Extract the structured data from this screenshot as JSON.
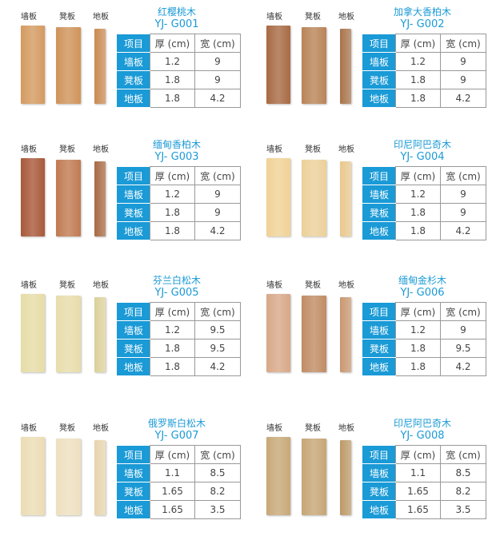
{
  "labels": {
    "wall": "墙板",
    "bench": "凳板",
    "floor": "地板"
  },
  "header": {
    "item": "项目",
    "thick": "厚 (cm)",
    "width": "宽 (cm)"
  },
  "accent": "#1a9ad6",
  "products": [
    {
      "name": "红樱桃木",
      "code": "YJ- G001",
      "colors": [
        "#d49a60",
        "#cf935a",
        "#c98a52"
      ],
      "rows": [
        [
          "墙板",
          "1.2",
          "9"
        ],
        [
          "凳板",
          "1.8",
          "9"
        ],
        [
          "地板",
          "1.8",
          "4.2"
        ]
      ]
    },
    {
      "name": "加拿大香柏木",
      "code": "YJ- G002",
      "colors": [
        "#a86a44",
        "#b98458",
        "#a8744c"
      ],
      "rows": [
        [
          "墙板",
          "1.2",
          "9"
        ],
        [
          "凳板",
          "1.8",
          "9"
        ],
        [
          "地板",
          "1.8",
          "4.2"
        ]
      ]
    },
    {
      "name": "缅甸香柏木",
      "code": "YJ- G003",
      "colors": [
        "#a8583a",
        "#c07a52",
        "#a86a44"
      ],
      "rows": [
        [
          "墙板",
          "1.2",
          "9"
        ],
        [
          "凳板",
          "1.8",
          "9"
        ],
        [
          "地板",
          "1.8",
          "4.2"
        ]
      ]
    },
    {
      "name": "印尼阿巴奇木",
      "code": "YJ- G004",
      "colors": [
        "#f0d296",
        "#ecd09a",
        "#e8c88e"
      ],
      "rows": [
        [
          "墙板",
          "1.2",
          "9"
        ],
        [
          "凳板",
          "1.8",
          "9"
        ],
        [
          "地板",
          "1.8",
          "4.2"
        ]
      ]
    },
    {
      "name": "芬兰白松木",
      "code": "YJ- G005",
      "colors": [
        "#e6dca6",
        "#e8dcaa",
        "#dcd09a"
      ],
      "rows": [
        [
          "墙板",
          "1.2",
          "9.5"
        ],
        [
          "凳板",
          "1.8",
          "9.5"
        ],
        [
          "地板",
          "1.8",
          "4.2"
        ]
      ]
    },
    {
      "name": "缅甸金杉木",
      "code": "YJ- G006",
      "colors": [
        "#d8a888",
        "#c08c64",
        "#c89870"
      ],
      "rows": [
        [
          "墙板",
          "1.2",
          "9"
        ],
        [
          "凳板",
          "1.8",
          "9.5"
        ],
        [
          "地板",
          "1.8",
          "4.2"
        ]
      ]
    },
    {
      "name": "俄罗斯白松木",
      "code": "YJ- G007",
      "colors": [
        "#ecdcb4",
        "#eee0c0",
        "#e6d4ac"
      ],
      "rows": [
        [
          "墙板",
          "1.1",
          "8.5"
        ],
        [
          "凳板",
          "1.65",
          "8.2"
        ],
        [
          "地板",
          "1.65",
          "3.5"
        ]
      ]
    },
    {
      "name": "印尼阿巴奇木",
      "code": "YJ- G008",
      "colors": [
        "#c8a878",
        "#c6a676",
        "#bc9a68"
      ],
      "rows": [
        [
          "墙板",
          "1.1",
          "8.5"
        ],
        [
          "凳板",
          "1.65",
          "8.2"
        ],
        [
          "地板",
          "1.65",
          "3.5"
        ]
      ]
    }
  ]
}
